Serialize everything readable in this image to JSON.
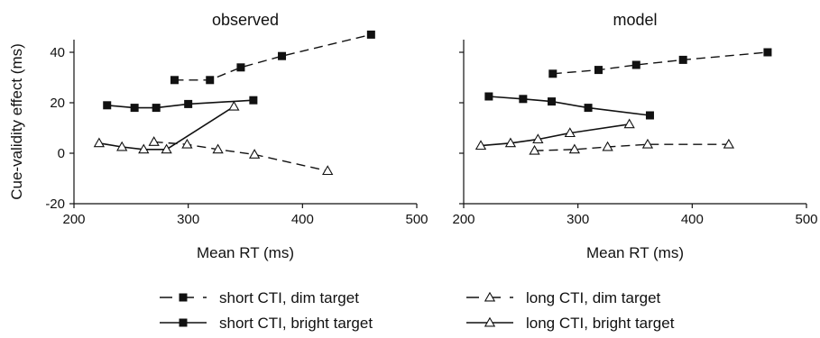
{
  "chart_data": [
    {
      "type": "line",
      "title": "observed",
      "xlabel": "Mean RT (ms)",
      "ylabel": "Cue-validity effect (ms)",
      "xlim": [
        200,
        500
      ],
      "ylim": [
        -20,
        45
      ],
      "xticks": [
        "200",
        "300",
        "400",
        "500"
      ],
      "yticks": [
        "-20",
        "0",
        "20",
        "40"
      ],
      "series": [
        {
          "name": "short CTI, dim target",
          "marker": "square",
          "line": "dashed",
          "points": [
            [
              288,
              29
            ],
            [
              319,
              29
            ],
            [
              346,
              34
            ],
            [
              382,
              38.5
            ],
            [
              460,
              47
            ]
          ]
        },
        {
          "name": "short CTI, bright target",
          "marker": "square",
          "line": "solid",
          "points": [
            [
              229,
              19
            ],
            [
              253,
              18
            ],
            [
              272,
              18
            ],
            [
              300,
              19.5
            ],
            [
              357,
              21
            ]
          ]
        },
        {
          "name": "long CTI, dim target",
          "marker": "triangle",
          "line": "dashed",
          "points": [
            [
              270,
              4.5
            ],
            [
              299,
              3.5
            ],
            [
              326,
              1.5
            ],
            [
              358,
              -0.5
            ],
            [
              422,
              -7
            ]
          ]
        },
        {
          "name": "long CTI, bright target",
          "marker": "triangle",
          "line": "solid",
          "points": [
            [
              222,
              4
            ],
            [
              242,
              2.5
            ],
            [
              261,
              1.5
            ],
            [
              281,
              1.5
            ],
            [
              340,
              18.5
            ]
          ]
        }
      ]
    },
    {
      "type": "line",
      "title": "model",
      "xlabel": "Mean RT (ms)",
      "ylabel": "",
      "xlim": [
        200,
        500
      ],
      "ylim": [
        -20,
        45
      ],
      "xticks": [
        "200",
        "300",
        "400",
        "500"
      ],
      "yticks": [],
      "series": [
        {
          "name": "short CTI, dim target",
          "marker": "square",
          "line": "dashed",
          "points": [
            [
              278,
              31.5
            ],
            [
              318,
              33
            ],
            [
              351,
              35
            ],
            [
              392,
              37
            ],
            [
              466,
              40
            ]
          ]
        },
        {
          "name": "short CTI, bright target",
          "marker": "square",
          "line": "solid",
          "points": [
            [
              222,
              22.5
            ],
            [
              252,
              21.5
            ],
            [
              277,
              20.5
            ],
            [
              309,
              18
            ],
            [
              363,
              15
            ]
          ]
        },
        {
          "name": "long CTI, dim target",
          "marker": "triangle",
          "line": "dashed",
          "points": [
            [
              262,
              1
            ],
            [
              297,
              1.5
            ],
            [
              326,
              2.5
            ],
            [
              361,
              3.5
            ],
            [
              432,
              3.5
            ]
          ]
        },
        {
          "name": "long CTI, bright target",
          "marker": "triangle",
          "line": "solid",
          "points": [
            [
              215,
              3
            ],
            [
              241,
              4
            ],
            [
              265,
              5.5
            ],
            [
              293,
              8
            ],
            [
              345,
              11.5
            ]
          ]
        }
      ]
    }
  ],
  "legend": {
    "items": [
      {
        "label": "short CTI, dim target",
        "marker": "square",
        "line": "dashed"
      },
      {
        "label": "long CTI, dim target",
        "marker": "triangle",
        "line": "dashed"
      },
      {
        "label": "short CTI, bright target",
        "marker": "square",
        "line": "solid"
      },
      {
        "label": "long CTI, bright target",
        "marker": "triangle",
        "line": "solid"
      }
    ]
  },
  "colors": {
    "ink": "#111111",
    "background": "#ffffff"
  }
}
